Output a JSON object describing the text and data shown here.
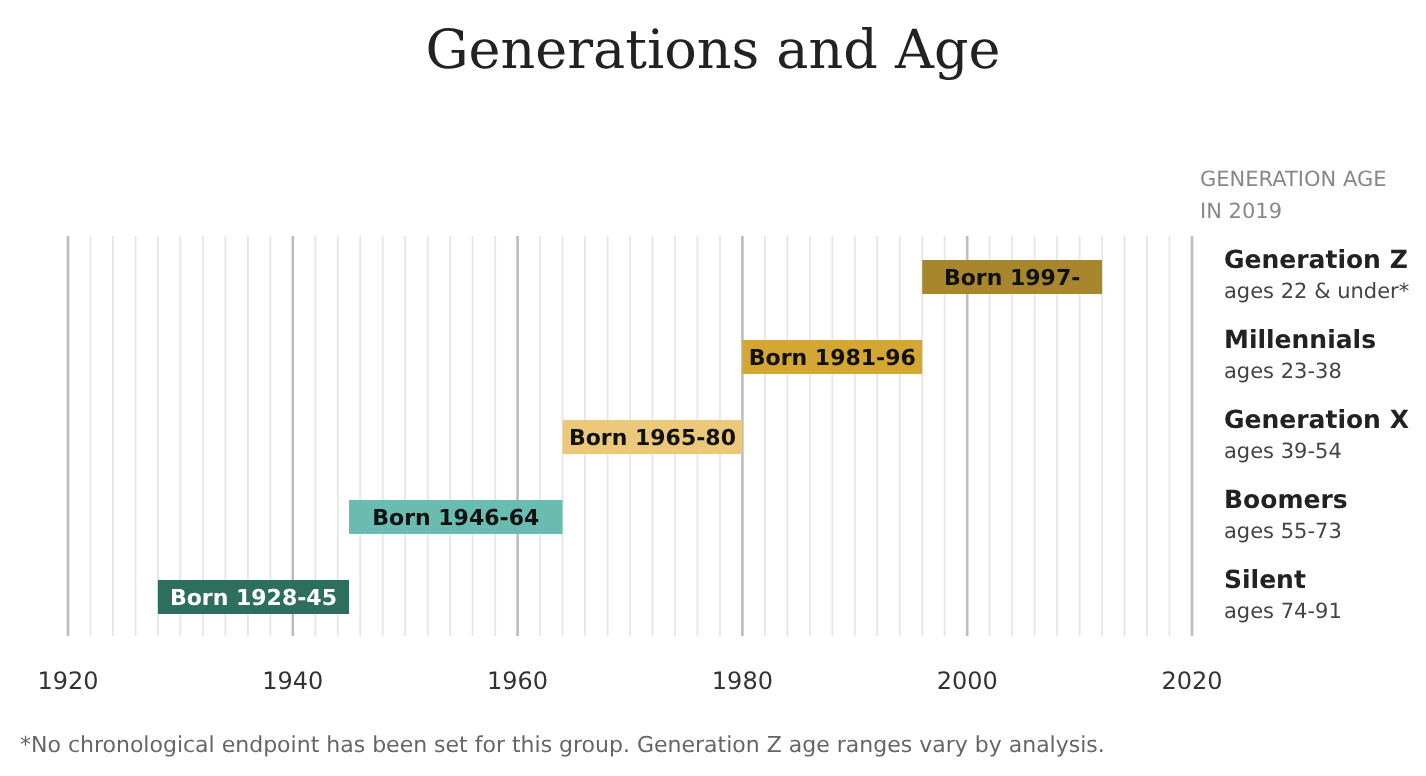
{
  "chart_data": {
    "type": "bar",
    "orientation": "horizontal",
    "title": "Generations and Age",
    "ylabel": "GENERATION AGE IN 2019",
    "categories": [
      "Generation Z",
      "Millennials",
      "Generation X",
      "Boomers",
      "Silent"
    ],
    "base": [
      1996,
      1980,
      1964,
      1945,
      1928
    ],
    "values": [
      16,
      16,
      16,
      19,
      17
    ],
    "colors": [
      "#a8862e",
      "#d4a733",
      "#ecc97a",
      "#6bbcb0",
      "#2e6e5c"
    ],
    "value_labels": [
      "Born 1997-",
      "Born 1981-96",
      "Born 1965-80",
      "Born 1946-64",
      "Born 1928-45"
    ],
    "xlim": [
      1920,
      2020
    ],
    "xticks": [
      1920,
      {
        "value": 1922,
        "label": null
      },
      {
        "value": 1924,
        "label": null
      },
      {
        "value": 1926,
        "label": null
      },
      {
        "value": 1928,
        "label": null
      },
      {
        "value": 1930,
        "label": null
      },
      {
        "value": 1932,
        "label": null
      },
      {
        "value": 1934,
        "label": null
      },
      {
        "value": 1936,
        "label": null
      },
      {
        "value": 1938,
        "label": null
      },
      1940,
      {
        "value": 1942,
        "label": null
      },
      {
        "value": 1944,
        "label": null
      },
      {
        "value": 1946,
        "label": null
      },
      {
        "value": 1948,
        "label": null
      },
      {
        "value": 1950,
        "label": null
      },
      {
        "value": 1952,
        "label": null
      },
      {
        "value": 1954,
        "label": null
      },
      {
        "value": 1956,
        "label": null
      },
      {
        "value": 1958,
        "label": null
      },
      1960,
      {
        "value": 1962,
        "label": null
      },
      {
        "value": 1964,
        "label": null
      },
      {
        "value": 1966,
        "label": null
      },
      {
        "value": 1968,
        "label": null
      },
      {
        "value": 1970,
        "label": null
      },
      {
        "value": 1972,
        "label": null
      },
      {
        "value": 1974,
        "label": null
      },
      {
        "value": 1976,
        "label": null
      },
      {
        "value": 1978,
        "label": null
      },
      1980,
      {
        "value": 1982,
        "label": null
      },
      {
        "value": 1984,
        "label": null
      },
      {
        "value": 1986,
        "label": null
      },
      {
        "value": 1988,
        "label": null
      },
      {
        "value": 1990,
        "label": null
      },
      {
        "value": 1992,
        "label": null
      },
      {
        "value": 1994,
        "label": null
      },
      {
        "value": 1996,
        "label": null
      },
      {
        "value": 1998,
        "label": null
      },
      2000,
      {
        "value": 2002,
        "label": null
      },
      {
        "value": 2004,
        "label": null
      },
      {
        "value": 2006,
        "label": null
      },
      {
        "value": 2008,
        "label": null
      },
      {
        "value": 2010,
        "label": null
      },
      {
        "value": 2012,
        "label": null
      },
      {
        "value": 2014,
        "label": null
      },
      {
        "value": 2016,
        "label": null
      },
      {
        "value": 2018,
        "label": null
      },
      2020
    ],
    "grid": "x",
    "legend": false,
    "annotations": [
      "ages 22 & under*",
      "ages 23-38",
      "ages 39-54",
      "ages 55-73",
      "ages 74-91",
      "*No chronological endpoint has been set for this group. Generation Z age ranges vary by analysis."
    ]
  }
}
